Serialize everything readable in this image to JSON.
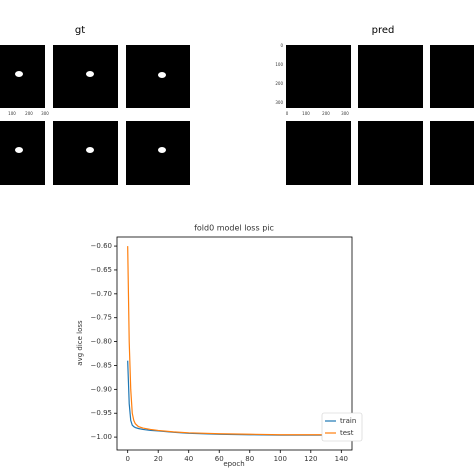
{
  "gt_panel": {
    "title": "gt",
    "x_tick_labels": [
      "100",
      "200",
      "300"
    ]
  },
  "pred_panel": {
    "title": "pred",
    "y_tick_labels": [
      "0",
      "100",
      "200",
      "300"
    ],
    "x_tick_labels": [
      "0",
      "100",
      "200",
      "300"
    ]
  },
  "chart_data": {
    "type": "line",
    "title": "fold0 model loss pic",
    "x_label": "epoch",
    "y_label": "avg dice loss",
    "x": [
      0,
      1,
      2,
      3,
      4,
      5,
      7,
      10,
      15,
      20,
      30,
      40,
      60,
      80,
      100,
      120,
      140
    ],
    "series": [
      {
        "name": "train",
        "color": "#1f77b4",
        "values": [
          -0.84,
          -0.93,
          -0.965,
          -0.975,
          -0.978,
          -0.98,
          -0.982,
          -0.984,
          -0.986,
          -0.987,
          -0.99,
          -0.992,
          -0.994,
          -0.995,
          -0.996,
          -0.996,
          -0.996
        ]
      },
      {
        "name": "test",
        "color": "#ff7f0e",
        "values": [
          -0.6,
          -0.8,
          -0.9,
          -0.95,
          -0.965,
          -0.972,
          -0.978,
          -0.981,
          -0.984,
          -0.986,
          -0.989,
          -0.991,
          -0.993,
          -0.994,
          -0.995,
          -0.995,
          -0.995
        ]
      }
    ],
    "xlim": [
      -7,
      147
    ],
    "ylim": [
      -1.027,
      -0.581
    ],
    "xticks": [
      0,
      20,
      40,
      60,
      80,
      100,
      120,
      140
    ],
    "yticks": [
      {
        "value": -0.6,
        "label": "−0.60"
      },
      {
        "value": -0.65,
        "label": "−0.65"
      },
      {
        "value": -0.7,
        "label": "−0.70"
      },
      {
        "value": -0.75,
        "label": "−0.75"
      },
      {
        "value": -0.8,
        "label": "−0.80"
      },
      {
        "value": -0.85,
        "label": "−0.85"
      },
      {
        "value": -0.9,
        "label": "−0.90"
      },
      {
        "value": -0.95,
        "label": "−0.95"
      },
      {
        "value": -1.0,
        "label": "−1.00"
      }
    ],
    "legend": "lower right",
    "grid": false
  }
}
